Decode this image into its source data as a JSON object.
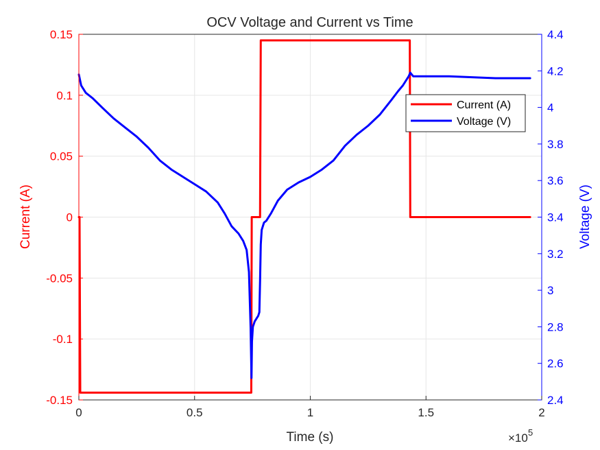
{
  "chart_data": {
    "type": "line",
    "title": "OCV Voltage and Current vs Time",
    "xlabel": "Time (s)",
    "ylabel_left": "Current (A)",
    "ylabel_right": "Voltage (V)",
    "x_exponent_label": "×10",
    "x_exponent_power": "5",
    "xlim": [
      0,
      2
    ],
    "ylim_left": [
      -0.15,
      0.15
    ],
    "ylim_right": [
      2.4,
      4.4
    ],
    "x_ticks": [
      0,
      0.5,
      1,
      1.5,
      2
    ],
    "x_tick_labels": [
      "0",
      "0.5",
      "1",
      "1.5",
      "2"
    ],
    "y_left_ticks": [
      -0.15,
      -0.1,
      -0.05,
      0,
      0.05,
      0.1,
      0.15
    ],
    "y_left_tick_labels": [
      "-0.15",
      "-0.1",
      "-0.05",
      "0",
      "0.05",
      "0.1",
      "0.15"
    ],
    "y_right_ticks": [
      2.4,
      2.6,
      2.8,
      3.0,
      3.2,
      3.4,
      3.6,
      3.8,
      4.0,
      4.2,
      4.4
    ],
    "y_right_tick_labels": [
      "2.4",
      "2.6",
      "2.8",
      "3",
      "3.2",
      "3.4",
      "3.6",
      "3.8",
      "4",
      "4.2",
      "4.4"
    ],
    "grid": true,
    "legend_position": "top-right",
    "colors": {
      "current": "#ff0000",
      "voltage": "#0000ff",
      "text": "#262626",
      "grid": "#e6e6e6"
    },
    "series": [
      {
        "name": "Current (A)",
        "axis": "left",
        "color": "#ff0000",
        "x": [
          0,
          0.003,
          0.006,
          0.745,
          0.747,
          0.783,
          0.786,
          1.43,
          1.432,
          1.95
        ],
        "y": [
          0,
          0,
          -0.144,
          -0.144,
          0,
          0,
          0.145,
          0.145,
          0,
          0
        ]
      },
      {
        "name": "Voltage (V)",
        "axis": "right",
        "color": "#0000ff",
        "x": [
          0,
          0.01,
          0.03,
          0.06,
          0.1,
          0.15,
          0.2,
          0.25,
          0.3,
          0.35,
          0.4,
          0.45,
          0.5,
          0.55,
          0.6,
          0.63,
          0.66,
          0.69,
          0.71,
          0.725,
          0.735,
          0.742,
          0.746,
          0.748,
          0.752,
          0.76,
          0.77,
          0.775,
          0.78,
          0.783,
          0.786,
          0.79,
          0.8,
          0.81,
          0.83,
          0.86,
          0.9,
          0.95,
          1.0,
          1.05,
          1.1,
          1.15,
          1.2,
          1.25,
          1.3,
          1.35,
          1.38,
          1.4,
          1.415,
          1.425,
          1.432,
          1.445,
          1.5,
          1.6,
          1.7,
          1.8,
          1.9,
          1.95
        ],
        "y": [
          4.18,
          4.12,
          4.08,
          4.05,
          4.0,
          3.94,
          3.89,
          3.84,
          3.78,
          3.71,
          3.66,
          3.62,
          3.58,
          3.54,
          3.48,
          3.42,
          3.35,
          3.31,
          3.27,
          3.22,
          3.1,
          2.8,
          2.52,
          2.72,
          2.8,
          2.83,
          2.85,
          2.86,
          2.88,
          3.05,
          3.25,
          3.33,
          3.37,
          3.38,
          3.42,
          3.49,
          3.55,
          3.59,
          3.62,
          3.66,
          3.71,
          3.79,
          3.85,
          3.9,
          3.96,
          4.04,
          4.09,
          4.12,
          4.15,
          4.17,
          4.19,
          4.17,
          4.17,
          4.17,
          4.165,
          4.16,
          4.16,
          4.16
        ]
      }
    ]
  }
}
